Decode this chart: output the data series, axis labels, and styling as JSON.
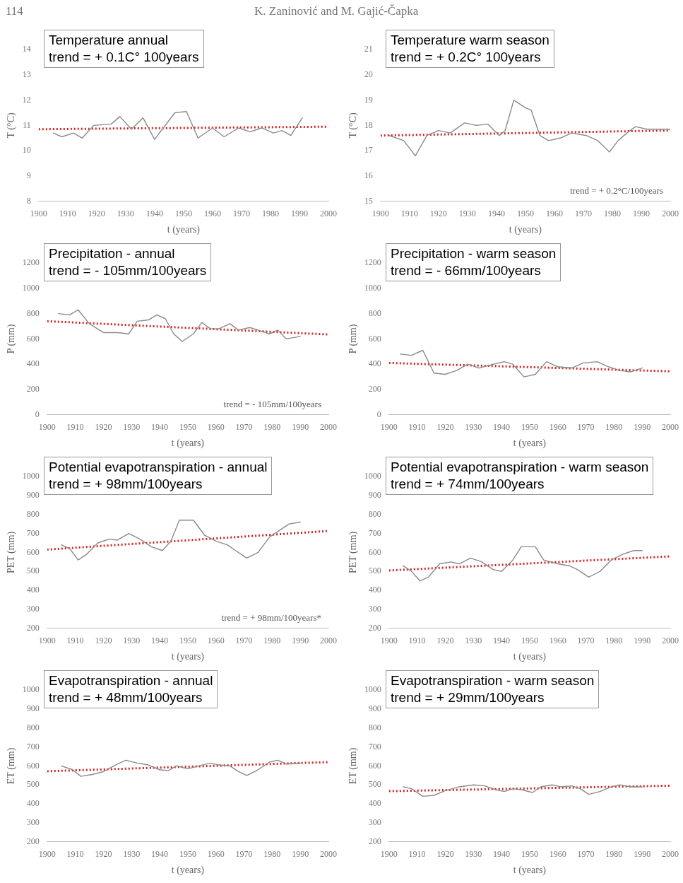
{
  "chart_data": [
    {
      "type": "other",
      "annotations": [
        "114",
        "K. Zaninović and M. Gajić-Čapka"
      ]
    },
    {
      "type": "line",
      "title": "Temperature annual",
      "subtitle": "trend = + 0.1C° 100years",
      "xlabel": "t (years)",
      "ylabel": "T (°C)",
      "marker": "none",
      "xlim": [
        1900,
        2000
      ],
      "xticks": [
        1900,
        1910,
        1920,
        1930,
        1940,
        1950,
        1960,
        1970,
        1980,
        1990,
        2000
      ],
      "ylim": [
        8,
        14
      ],
      "yticks": [
        8,
        9,
        10,
        11,
        12,
        13,
        14
      ],
      "series": [
        {
          "type": "line",
          "color": "#8a8a8a",
          "line_style": "solid",
          "x": [
            1905,
            1908,
            1912,
            1915,
            1919,
            1925,
            1928,
            1932,
            1936,
            1940,
            1943,
            1947,
            1951,
            1955,
            1960,
            1964,
            1969,
            1973,
            1977,
            1981,
            1984,
            1987,
            1991
          ],
          "values": [
            10.7,
            10.55,
            10.7,
            10.5,
            11.0,
            11.05,
            11.35,
            10.85,
            11.3,
            10.45,
            10.9,
            11.5,
            11.55,
            10.5,
            10.9,
            10.55,
            10.9,
            10.75,
            10.9,
            10.7,
            10.8,
            10.6,
            11.3
          ]
        },
        {
          "type": "line",
          "color": "#d42020",
          "line_style": "dotted",
          "x": [
            1900,
            2000
          ],
          "values": [
            10.85,
            10.95
          ]
        }
      ]
    },
    {
      "type": "line",
      "title": "Temperature warm season",
      "subtitle": "trend = + 0.2C° 100years",
      "xlabel": "t (years)",
      "ylabel": "T (°C)",
      "marker": "none",
      "annotations": [
        "trend = + 0.2°C/100years"
      ],
      "xlim": [
        1900,
        2000
      ],
      "xticks": [
        1900,
        1910,
        1920,
        1930,
        1940,
        1950,
        1960,
        1970,
        1980,
        1990,
        2000
      ],
      "ylim": [
        15,
        21
      ],
      "yticks": [
        15,
        16,
        17,
        18,
        19,
        20,
        21
      ],
      "series": [
        {
          "type": "line",
          "color": "#8a8a8a",
          "line_style": "solid",
          "x": [
            1903,
            1908,
            1912,
            1916,
            1920,
            1924,
            1929,
            1933,
            1937,
            1941,
            1943,
            1946,
            1950,
            1952,
            1955,
            1958,
            1962,
            1966,
            1971,
            1975,
            1979,
            1982,
            1985,
            1988,
            1992,
            2000
          ],
          "values": [
            17.6,
            17.4,
            16.8,
            17.6,
            17.8,
            17.7,
            18.1,
            18.0,
            18.05,
            17.6,
            17.8,
            19.0,
            18.7,
            18.6,
            17.6,
            17.4,
            17.5,
            17.7,
            17.6,
            17.4,
            16.95,
            17.4,
            17.7,
            17.95,
            17.85,
            17.85
          ]
        },
        {
          "type": "line",
          "color": "#d42020",
          "line_style": "dotted",
          "x": [
            1900,
            2000
          ],
          "values": [
            17.6,
            17.8
          ]
        }
      ]
    },
    {
      "type": "line",
      "title": "Precipitation - annual",
      "subtitle": "trend = - 105mm/100years",
      "xlabel": "t (years)",
      "ylabel": "P (mm)",
      "marker": "none",
      "annotations": [
        "trend = - 105mm/100years"
      ],
      "xlim": [
        1900,
        2000
      ],
      "xticks": [
        1900,
        1910,
        1920,
        1930,
        1940,
        1950,
        1960,
        1970,
        1980,
        1990,
        2000
      ],
      "ylim": [
        0,
        1200
      ],
      "yticks": [
        0,
        200,
        400,
        600,
        800,
        1000,
        1200
      ],
      "series": [
        {
          "type": "line",
          "color": "#8a8a8a",
          "line_style": "solid",
          "x": [
            1904,
            1908,
            1911,
            1915,
            1920,
            1925,
            1929,
            1932,
            1936,
            1939,
            1942,
            1945,
            1948,
            1952,
            1955,
            1958,
            1961,
            1965,
            1968,
            1972,
            1975,
            1979,
            1982,
            1985,
            1990
          ],
          "values": [
            800,
            790,
            830,
            720,
            650,
            650,
            640,
            740,
            750,
            790,
            760,
            640,
            580,
            640,
            730,
            680,
            680,
            720,
            670,
            690,
            670,
            640,
            670,
            600,
            620
          ]
        },
        {
          "type": "line",
          "color": "#d42020",
          "line_style": "dotted",
          "x": [
            1900,
            2000
          ],
          "values": [
            740,
            635
          ]
        }
      ]
    },
    {
      "type": "line",
      "title": "Precipitation - warm season",
      "subtitle": "trend = - 66mm/100years",
      "xlabel": "t (years)",
      "ylabel": "P (mm)",
      "marker": "none",
      "xlim": [
        1900,
        2000
      ],
      "xticks": [
        1900,
        1910,
        1920,
        1930,
        1940,
        1950,
        1960,
        1970,
        1980,
        1990,
        2000
      ],
      "ylim": [
        0,
        1200
      ],
      "yticks": [
        0,
        200,
        400,
        600,
        800,
        1000,
        1200
      ],
      "series": [
        {
          "type": "line",
          "color": "#8a8a8a",
          "line_style": "solid",
          "x": [
            1904,
            1908,
            1912,
            1916,
            1920,
            1924,
            1928,
            1932,
            1937,
            1941,
            1944,
            1948,
            1952,
            1956,
            1960,
            1965,
            1969,
            1974,
            1978,
            1982,
            1986,
            1990
          ],
          "values": [
            480,
            470,
            510,
            330,
            320,
            350,
            400,
            370,
            400,
            420,
            400,
            300,
            320,
            420,
            380,
            370,
            410,
            420,
            380,
            350,
            340,
            370
          ]
        },
        {
          "type": "line",
          "color": "#d42020",
          "line_style": "dotted",
          "x": [
            1900,
            2000
          ],
          "values": [
            410,
            344
          ]
        }
      ]
    },
    {
      "type": "line",
      "title": "Potential evapotranspiration - annual",
      "subtitle": "trend = + 98mm/100years",
      "xlabel": "t (years)",
      "ylabel": "PET (mm)",
      "marker": "none",
      "annotations": [
        "trend = + 98mm/100years*"
      ],
      "xlim": [
        1900,
        2000
      ],
      "xticks": [
        1900,
        1910,
        1920,
        1930,
        1940,
        1950,
        1960,
        1970,
        1980,
        1990,
        2000
      ],
      "ylim": [
        200,
        1000
      ],
      "yticks": [
        200,
        300,
        400,
        500,
        600,
        700,
        800,
        900,
        1000
      ],
      "series": [
        {
          "type": "line",
          "color": "#8a8a8a",
          "line_style": "solid",
          "x": [
            1905,
            1908,
            1911,
            1914,
            1918,
            1922,
            1925,
            1929,
            1933,
            1937,
            1941,
            1944,
            1947,
            1952,
            1956,
            1960,
            1964,
            1967,
            1971,
            1975,
            1979,
            1983,
            1986,
            1990
          ],
          "values": [
            640,
            620,
            560,
            590,
            650,
            670,
            665,
            700,
            670,
            630,
            610,
            660,
            770,
            770,
            690,
            660,
            640,
            610,
            570,
            600,
            680,
            720,
            750,
            760
          ]
        },
        {
          "type": "line",
          "color": "#d42020",
          "line_style": "dotted",
          "x": [
            1900,
            2000
          ],
          "values": [
            615,
            713
          ]
        }
      ]
    },
    {
      "type": "line",
      "title": "Potential evapotranspiration - warm season",
      "subtitle": "trend = + 74mm/100years",
      "xlabel": "t (years)",
      "ylabel": "PET (mm)",
      "marker": "none",
      "xlim": [
        1900,
        2000
      ],
      "xticks": [
        1900,
        1910,
        1920,
        1930,
        1940,
        1950,
        1960,
        1970,
        1980,
        1990,
        2000
      ],
      "ylim": [
        200,
        1000
      ],
      "yticks": [
        200,
        300,
        400,
        500,
        600,
        700,
        800,
        900,
        1000
      ],
      "series": [
        {
          "type": "line",
          "color": "#8a8a8a",
          "line_style": "solid",
          "x": [
            1905,
            1908,
            1911,
            1914,
            1918,
            1922,
            1925,
            1929,
            1933,
            1937,
            1940,
            1944,
            1947,
            1952,
            1955,
            1960,
            1964,
            1967,
            1971,
            1975,
            1979,
            1983,
            1987,
            1990
          ],
          "values": [
            530,
            500,
            450,
            470,
            540,
            550,
            540,
            570,
            550,
            510,
            500,
            560,
            630,
            630,
            560,
            540,
            530,
            510,
            470,
            500,
            560,
            590,
            610,
            610
          ]
        },
        {
          "type": "line",
          "color": "#d42020",
          "line_style": "dotted",
          "x": [
            1900,
            2000
          ],
          "values": [
            505,
            579
          ]
        }
      ]
    },
    {
      "type": "line",
      "title": "Evapotranspiration - annual",
      "subtitle": "trend = + 48mm/100years",
      "xlabel": "t (years)",
      "ylabel": "ET (mm)",
      "marker": "none",
      "xlim": [
        1900,
        2000
      ],
      "xticks": [
        1900,
        1910,
        1920,
        1930,
        1940,
        1950,
        1960,
        1970,
        1980,
        1990,
        2000
      ],
      "ylim": [
        200,
        1000
      ],
      "yticks": [
        200,
        300,
        400,
        500,
        600,
        700,
        800,
        900,
        1000
      ],
      "series": [
        {
          "type": "line",
          "color": "#8a8a8a",
          "line_style": "solid",
          "x": [
            1905,
            1909,
            1912,
            1916,
            1920,
            1925,
            1928,
            1932,
            1936,
            1940,
            1943,
            1946,
            1950,
            1954,
            1958,
            1961,
            1965,
            1968,
            1971,
            1975,
            1979,
            1982,
            1985,
            1990
          ],
          "values": [
            600,
            580,
            545,
            555,
            570,
            610,
            630,
            615,
            605,
            580,
            575,
            600,
            585,
            600,
            615,
            605,
            600,
            570,
            550,
            580,
            620,
            630,
            610,
            615
          ]
        },
        {
          "type": "line",
          "color": "#d42020",
          "line_style": "dotted",
          "x": [
            1900,
            2000
          ],
          "values": [
            572,
            620
          ]
        }
      ]
    },
    {
      "type": "line",
      "title": "Evapotranspiration - warm season",
      "subtitle": "trend = + 29mm/100years",
      "xlabel": "t (years)",
      "ylabel": "ET (mm)",
      "marker": "none",
      "xlim": [
        1900,
        2000
      ],
      "xticks": [
        1900,
        1910,
        1920,
        1930,
        1940,
        1950,
        1960,
        1970,
        1980,
        1990,
        2000
      ],
      "ylim": [
        200,
        1000
      ],
      "yticks": [
        200,
        300,
        400,
        500,
        600,
        700,
        800,
        900,
        1000
      ],
      "series": [
        {
          "type": "line",
          "color": "#8a8a8a",
          "line_style": "solid",
          "x": [
            1905,
            1908,
            1912,
            1916,
            1920,
            1925,
            1930,
            1934,
            1938,
            1941,
            1944,
            1947,
            1951,
            1954,
            1958,
            1961,
            1965,
            1968,
            1971,
            1975,
            1979,
            1982,
            1986,
            1990
          ],
          "values": [
            490,
            480,
            440,
            445,
            470,
            490,
            500,
            495,
            475,
            465,
            480,
            475,
            460,
            490,
            500,
            490,
            495,
            480,
            450,
            465,
            490,
            500,
            490,
            490
          ]
        },
        {
          "type": "line",
          "color": "#d42020",
          "line_style": "dotted",
          "x": [
            1900,
            2000
          ],
          "values": [
            467,
            496
          ]
        }
      ]
    }
  ]
}
